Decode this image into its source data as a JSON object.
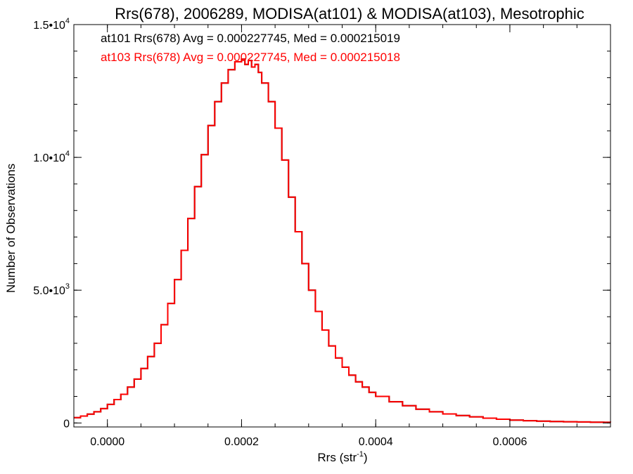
{
  "chart_data": {
    "type": "line",
    "title": "Rrs(678), 2006289, MODISA(at101) & MODISA(at103), Mesotrophic",
    "xlabel": {
      "base": "Rrs (str",
      "sup": "-1",
      "close": ")"
    },
    "ylabel": "Number of Observations",
    "xlim": [
      -5e-05,
      0.00075
    ],
    "ylim": [
      -150,
      15000
    ],
    "x_ticks": [
      {
        "value": 0.0,
        "label": "0.0000"
      },
      {
        "value": 0.0002,
        "label": "0.0002"
      },
      {
        "value": 0.0004,
        "label": "0.0004"
      },
      {
        "value": 0.0006,
        "label": "0.0006"
      }
    ],
    "y_ticks": [
      {
        "value": 0,
        "mant": "0",
        "exp": ""
      },
      {
        "value": 5000,
        "mant": "5.0•10",
        "exp": "3"
      },
      {
        "value": 10000,
        "mant": "1.0•10",
        "exp": "4"
      },
      {
        "value": 15000,
        "mant": "1.5•10",
        "exp": "4"
      }
    ],
    "x_minor_step": 5e-05,
    "y_minor_step": 1000,
    "grid": false,
    "legend": [
      {
        "text": "at101 Rrs(678) Avg = 0.000227745, Med = 0.000215019",
        "color": "#000000"
      },
      {
        "text": "at103 Rrs(678) Avg = 0.000227745, Med = 0.000215018",
        "color": "#ff0000"
      }
    ],
    "series": [
      {
        "color": "#000000",
        "x": [
          -5e-05,
          -4e-05,
          -3e-05,
          -2e-05,
          -1e-05,
          0.0,
          1e-05,
          2e-05,
          3e-05,
          4e-05,
          5e-05,
          6e-05,
          7e-05,
          8e-05,
          9e-05,
          0.0001,
          0.00011,
          0.00012,
          0.00013,
          0.00014,
          0.00015,
          0.00016,
          0.00017,
          0.00018,
          0.00019,
          0.0002,
          0.000205,
          0.00021,
          0.000215,
          0.00022,
          0.000225,
          0.00023,
          0.00024,
          0.00025,
          0.00026,
          0.00027,
          0.00028,
          0.00029,
          0.0003,
          0.00031,
          0.00032,
          0.00033,
          0.00034,
          0.00035,
          0.00036,
          0.00037,
          0.00038,
          0.00039,
          0.0004,
          0.00042,
          0.00044,
          0.00046,
          0.00048,
          0.0005,
          0.00052,
          0.00054,
          0.00056,
          0.00058,
          0.0006,
          0.00062,
          0.00064,
          0.00066,
          0.00068,
          0.0007,
          0.00072,
          0.00074,
          0.00075
        ],
        "y": [
          200,
          260,
          330,
          420,
          540,
          700,
          880,
          1080,
          1350,
          1650,
          2050,
          2500,
          3000,
          3700,
          4500,
          5400,
          6500,
          7700,
          8900,
          10100,
          11200,
          12100,
          12800,
          13300,
          13600,
          13700,
          13500,
          13650,
          13400,
          13500,
          13200,
          12800,
          12100,
          11100,
          9900,
          8500,
          7200,
          6000,
          5000,
          4200,
          3500,
          2900,
          2450,
          2100,
          1800,
          1550,
          1350,
          1150,
          1000,
          800,
          650,
          520,
          420,
          340,
          280,
          230,
          180,
          140,
          110,
          85,
          70,
          55,
          45,
          38,
          30,
          25,
          22
        ]
      },
      {
        "color": "#ff0000",
        "x": [
          -5e-05,
          -4e-05,
          -3e-05,
          -2e-05,
          -1e-05,
          0.0,
          1e-05,
          2e-05,
          3e-05,
          4e-05,
          5e-05,
          6e-05,
          7e-05,
          8e-05,
          9e-05,
          0.0001,
          0.00011,
          0.00012,
          0.00013,
          0.00014,
          0.00015,
          0.00016,
          0.00017,
          0.00018,
          0.00019,
          0.0002,
          0.000205,
          0.00021,
          0.000215,
          0.00022,
          0.000225,
          0.00023,
          0.00024,
          0.00025,
          0.00026,
          0.00027,
          0.00028,
          0.00029,
          0.0003,
          0.00031,
          0.00032,
          0.00033,
          0.00034,
          0.00035,
          0.00036,
          0.00037,
          0.00038,
          0.00039,
          0.0004,
          0.00042,
          0.00044,
          0.00046,
          0.00048,
          0.0005,
          0.00052,
          0.00054,
          0.00056,
          0.00058,
          0.0006,
          0.00062,
          0.00064,
          0.00066,
          0.00068,
          0.0007,
          0.00072,
          0.00074,
          0.00075
        ],
        "y": [
          200,
          260,
          330,
          420,
          540,
          700,
          880,
          1080,
          1350,
          1650,
          2050,
          2500,
          3000,
          3700,
          4500,
          5400,
          6500,
          7700,
          8900,
          10100,
          11200,
          12100,
          12800,
          13300,
          13600,
          13700,
          13500,
          13650,
          13400,
          13500,
          13200,
          12800,
          12100,
          11100,
          9900,
          8500,
          7200,
          6000,
          5000,
          4200,
          3500,
          2900,
          2450,
          2100,
          1800,
          1550,
          1350,
          1150,
          1000,
          800,
          650,
          520,
          420,
          340,
          280,
          230,
          180,
          140,
          110,
          85,
          70,
          55,
          45,
          38,
          30,
          25,
          22
        ]
      }
    ]
  }
}
